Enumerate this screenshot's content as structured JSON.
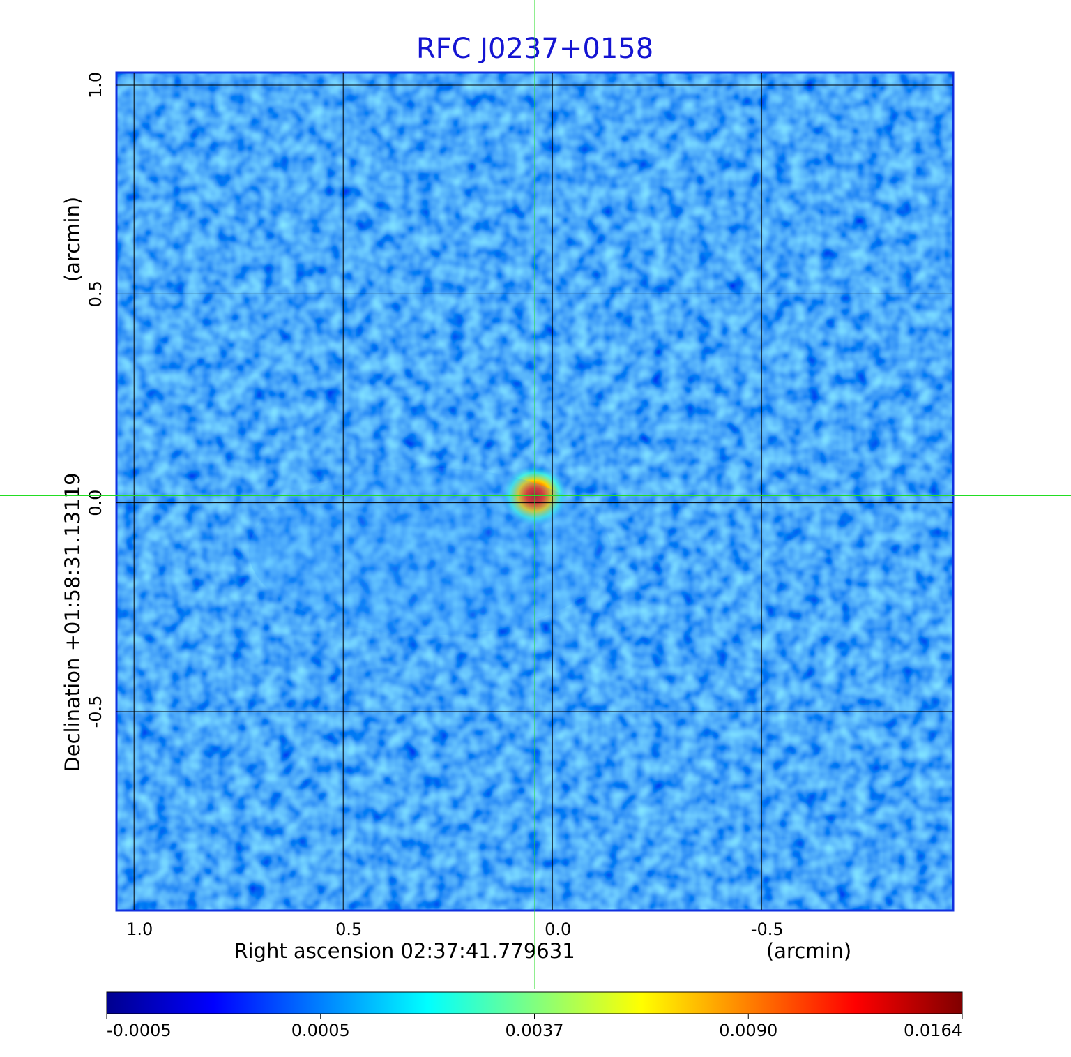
{
  "chart_data": {
    "type": "image",
    "title": "RFC J0237+0158",
    "x_label": "Right ascension  02:37:41.779631",
    "x_unit": "(arcmin)",
    "y_label": "Declination  +01:58:31.13119",
    "y_unit": "(arcmin)",
    "xlim": [
      1.042,
      -0.958
    ],
    "ylim": [
      -0.976,
      1.03
    ],
    "xticks": [
      {
        "value": 1,
        "label": "1.0"
      },
      {
        "value": 0.5,
        "label": "0.5"
      },
      {
        "value": 0,
        "label": "0.0"
      },
      {
        "value": -0.5,
        "label": "-0.5"
      }
    ],
    "yticks": [
      {
        "value": 1,
        "label": "1.0"
      },
      {
        "value": 0.5,
        "label": "0.5"
      },
      {
        "value": 0,
        "label": "0.0"
      },
      {
        "value": -0.5,
        "label": "-0.5"
      }
    ],
    "grid": true,
    "marker": {
      "x": 0.042,
      "y": 0.017,
      "color": "#22dd22"
    },
    "colormap": "jet",
    "colorbar_ticks": [
      -0.0005,
      0.0005,
      0.0037,
      {
        "value": 0.009,
        "label": "0.0090"
      },
      0.0164
    ]
  }
}
